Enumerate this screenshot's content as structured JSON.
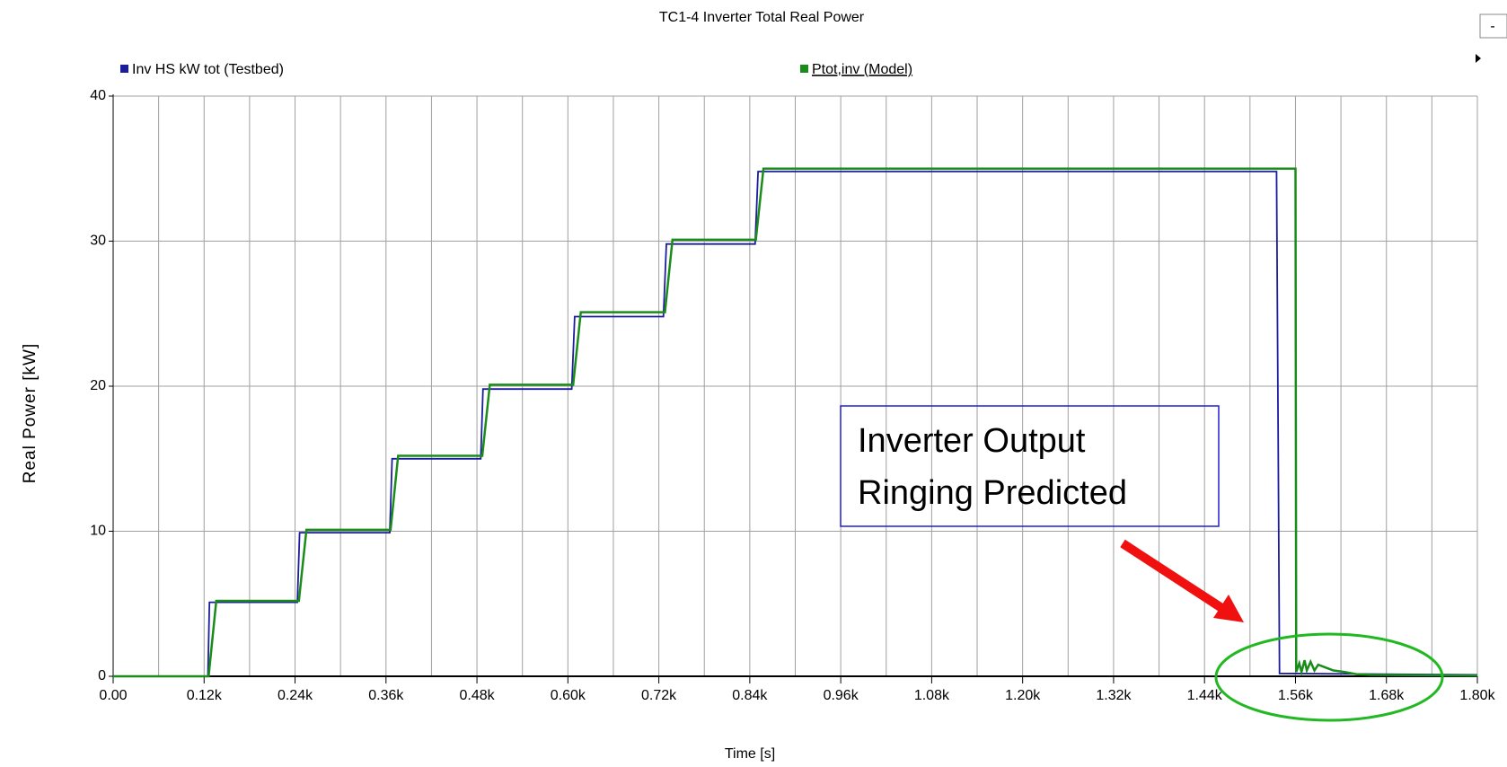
{
  "chart_data": {
    "type": "line",
    "title": "TC1-4 Inverter Total Real Power",
    "xlabel": "Time [s]",
    "ylabel": "Real Power  [kW]",
    "xlim": [
      0,
      1800
    ],
    "ylim": [
      0,
      40
    ],
    "xticks": [
      {
        "value": 0,
        "label": "0.00"
      },
      {
        "value": 120,
        "label": "0.12k"
      },
      {
        "value": 240,
        "label": "0.24k"
      },
      {
        "value": 360,
        "label": "0.36k"
      },
      {
        "value": 480,
        "label": "0.48k"
      },
      {
        "value": 600,
        "label": "0.60k"
      },
      {
        "value": 720,
        "label": "0.72k"
      },
      {
        "value": 840,
        "label": "0.84k"
      },
      {
        "value": 960,
        "label": "0.96k"
      },
      {
        "value": 1080,
        "label": "1.08k"
      },
      {
        "value": 1200,
        "label": "1.20k"
      },
      {
        "value": 1320,
        "label": "1.32k"
      },
      {
        "value": 1440,
        "label": "1.44k"
      },
      {
        "value": 1560,
        "label": "1.56k"
      },
      {
        "value": 1680,
        "label": "1.68k"
      },
      {
        "value": 1800,
        "label": "1.80k"
      }
    ],
    "yticks": [
      0,
      10,
      20,
      30,
      40
    ],
    "grid": true,
    "series": [
      {
        "name": "Inv HS kW tot (Testbed)",
        "color": "#1c1c9e",
        "x": [
          0,
          125,
          127,
          243,
          246,
          365,
          368,
          485,
          488,
          605,
          609,
          726,
          730,
          847,
          851,
          1535,
          1537,
          1539,
          1800
        ],
        "values": [
          0,
          0,
          5.1,
          5.1,
          9.9,
          9.9,
          15,
          15,
          19.8,
          19.8,
          24.8,
          24.8,
          29.8,
          29.8,
          34.8,
          34.8,
          17.6,
          0.2,
          0.1
        ]
      },
      {
        "name": "Ptot,inv (Model)",
        "color": "#1a8c1a",
        "x": [
          0,
          126,
          136,
          245,
          255,
          366,
          376,
          487,
          497,
          607,
          617,
          728,
          738,
          848,
          858,
          1560,
          1561,
          1565,
          1568,
          1572,
          1575,
          1580,
          1585,
          1590,
          1600,
          1610,
          1625,
          1640,
          1660,
          1800
        ],
        "values": [
          0,
          0,
          5.2,
          5.2,
          10.1,
          10.1,
          15.2,
          15.2,
          20.1,
          20.1,
          25.1,
          25.1,
          30.1,
          30.1,
          35,
          35,
          0.3,
          0.9,
          0.3,
          1.1,
          0.4,
          1.0,
          0.4,
          0.8,
          0.6,
          0.4,
          0.3,
          0.15,
          0.1,
          0.05
        ]
      }
    ],
    "annotation": [
      "Inverter Output",
      "Ringing Predicted"
    ]
  }
}
